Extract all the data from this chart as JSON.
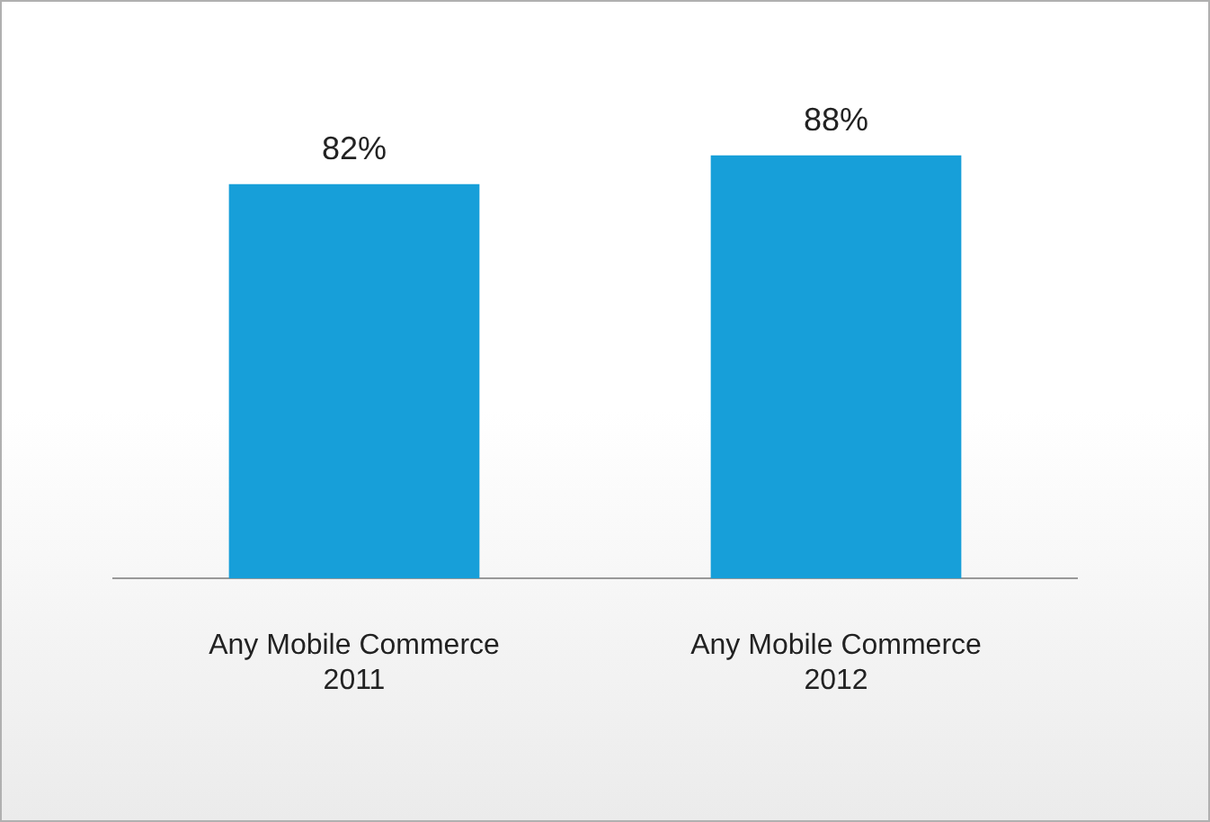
{
  "chart_data": {
    "type": "bar",
    "categories": [
      "Any Mobile Commerce\n2011",
      "Any Mobile Commerce\n2012"
    ],
    "values": [
      82,
      88
    ],
    "color": "#179fd9",
    "value_labels": [
      "82%",
      "88%"
    ],
    "grid": false,
    "legend": false,
    "tick_labels": "x"
  }
}
